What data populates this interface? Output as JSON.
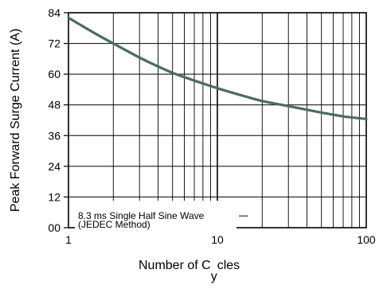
{
  "chart_data": {
    "type": "line",
    "title": "",
    "xlabel_parts": [
      "Number of C",
      "y",
      "cles"
    ],
    "ylabel": "Peak Forward Surge Current (A)",
    "x_scale": "log",
    "xlim": [
      1,
      100
    ],
    "ylim": [
      0,
      84
    ],
    "x_ticks": [
      1,
      10,
      100
    ],
    "x_tick_labels": [
      "1",
      "10",
      "100"
    ],
    "y_ticks": [
      0,
      12,
      24,
      36,
      48,
      60,
      72,
      84
    ],
    "y_tick_labels": [
      "00",
      "12",
      "24",
      "36",
      "48",
      "60",
      "72",
      "84"
    ],
    "grid": true,
    "annotation": [
      "8.3 ms Single Half Sine Wave",
      "(JEDEC Method)"
    ],
    "series": [
      {
        "line_color": "#4a6b63",
        "x": [
          1,
          1.5,
          2,
          3,
          4,
          5,
          7,
          10,
          15,
          20,
          30,
          50,
          70,
          100
        ],
        "y": [
          82,
          76,
          72,
          66.5,
          63,
          60.5,
          57.5,
          54.5,
          51.5,
          49.5,
          47.5,
          45,
          43.5,
          42.5
        ]
      }
    ],
    "colors": {
      "axis": "#000000",
      "grid": "#000000",
      "curve": "#4a6b63"
    }
  }
}
